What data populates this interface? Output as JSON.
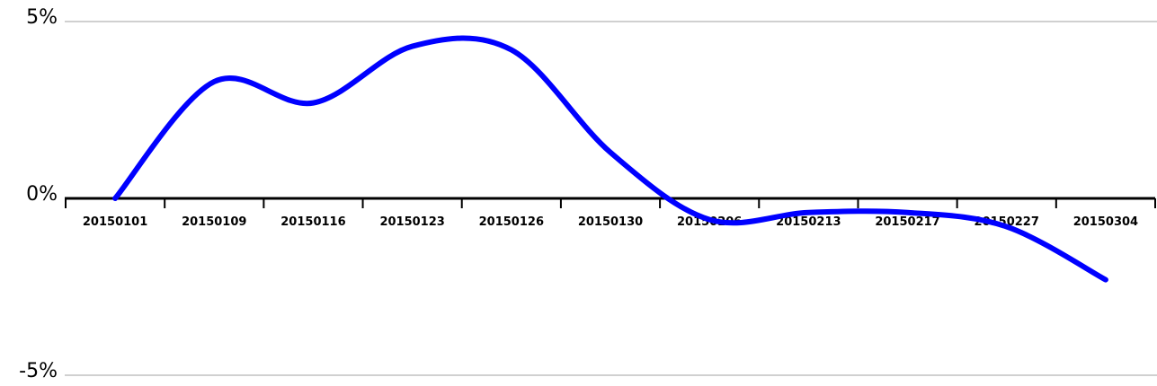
{
  "chart_data": {
    "type": "line",
    "title": "",
    "xlabel": "",
    "ylabel": "",
    "categories": [
      "20150101",
      "20150109",
      "20150116",
      "20150123",
      "20150126",
      "20150130",
      "20150206",
      "20150213",
      "20150217",
      "20150227",
      "20150304"
    ],
    "series": [
      {
        "name": "",
        "color": "#0000ff",
        "values": [
          0.0,
          3.3,
          2.7,
          4.3,
          4.2,
          1.3,
          -0.6,
          -0.4,
          -0.4,
          -0.8,
          -2.3
        ]
      }
    ],
    "y_ticks": [
      {
        "value": 5,
        "label": "5%"
      },
      {
        "value": 0,
        "label": "0%"
      },
      {
        "value": -5,
        "label": "-5%"
      }
    ],
    "ylim": [
      -5,
      5
    ],
    "grid": true,
    "smooth": true
  }
}
